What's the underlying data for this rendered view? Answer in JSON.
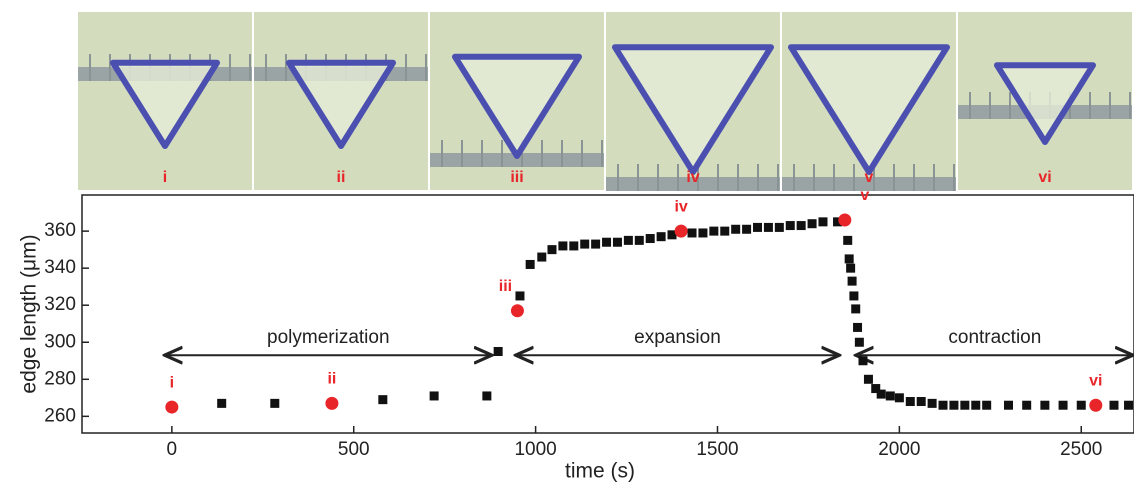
{
  "images": {
    "labels": [
      "i",
      "ii",
      "iii",
      "iv",
      "v",
      "vi"
    ]
  },
  "chart_data": {
    "type": "scatter",
    "x_label": "time (s)",
    "y_label": "edge length (μm)",
    "xlim": [
      -247,
      2645
    ],
    "ylim": [
      251,
      379.5
    ],
    "xticks": [
      0,
      500,
      1000,
      1500,
      2000,
      2500
    ],
    "yticks": [
      260,
      280,
      300,
      320,
      340,
      360
    ],
    "x": [
      137,
      283,
      580,
      721,
      866,
      897,
      957,
      985,
      1017,
      1045,
      1075,
      1105,
      1135,
      1165,
      1195,
      1225,
      1255,
      1285,
      1315,
      1345,
      1375,
      1430,
      1460,
      1490,
      1520,
      1550,
      1580,
      1610,
      1640,
      1670,
      1700,
      1730,
      1760,
      1790,
      1830,
      1858,
      1862,
      1866,
      1870,
      1875,
      1880,
      1885,
      1890,
      1900,
      1915,
      1935,
      1950,
      1975,
      2000,
      2030,
      2060,
      2090,
      2120,
      2150,
      2180,
      2210,
      2240,
      2300,
      2350,
      2400,
      2450,
      2500,
      2590,
      2630
    ],
    "values": [
      267,
      267,
      269,
      271,
      271,
      295,
      325,
      342,
      346,
      350,
      352,
      352,
      353,
      353,
      354,
      354,
      355,
      355,
      356,
      357,
      358,
      359,
      359,
      360,
      360,
      361,
      361,
      362,
      362,
      362,
      363,
      363,
      364,
      365,
      365,
      355,
      345,
      340,
      333,
      325,
      318,
      308,
      300,
      290,
      280,
      275,
      272,
      271,
      270,
      268,
      268,
      267,
      266,
      266,
      266,
      266,
      266,
      266,
      266,
      266,
      266,
      266,
      266,
      266
    ],
    "color": "#111111",
    "highlights": {
      "labels": [
        "i",
        "ii",
        "iii",
        "iv",
        "v",
        "vi"
      ],
      "x": [
        0,
        440,
        950,
        1400,
        1850,
        2540
      ],
      "values": [
        265,
        267,
        317,
        360,
        366,
        266
      ],
      "color": "#e8262a"
    },
    "annotations": [
      {
        "text": "polymerization",
        "x": [
          -20,
          880
        ],
        "y": 293
      },
      {
        "text": "expansion",
        "x": [
          945,
          1835
        ],
        "y": 293
      },
      {
        "text": "contraction",
        "x": [
          1880,
          2645
        ],
        "y": 293
      }
    ]
  }
}
